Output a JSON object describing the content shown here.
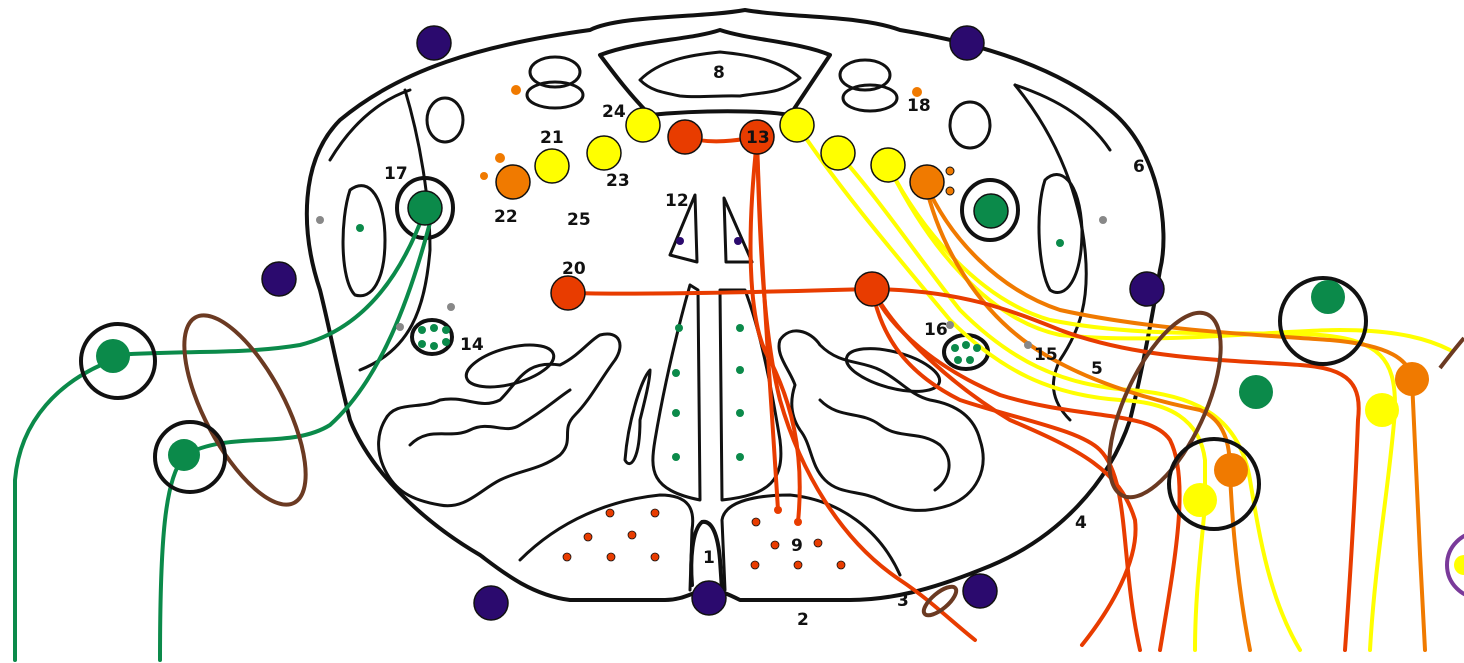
{
  "colors": {
    "outline": "#111111",
    "green": "#0b8a4a",
    "yellow": "#ffff00",
    "orange": "#f07a00",
    "red_orange": "#e83c00",
    "purple_navy": "#2b0a6e",
    "brown": "#6b3a22",
    "violet": "#7a3a9a",
    "gray": "#888888"
  },
  "labels": {
    "l1": "1",
    "l2": "2",
    "l3": "3",
    "l4": "4",
    "l5": "5",
    "l6": "6",
    "l8": "8",
    "l9": "9",
    "l12": "12",
    "l13": "13",
    "l14": "14",
    "l15": "15",
    "l16": "16",
    "l17": "17",
    "l18": "18",
    "l20": "20",
    "l21": "21",
    "l22": "22",
    "l23": "23",
    "l24": "24",
    "l25": "25"
  }
}
